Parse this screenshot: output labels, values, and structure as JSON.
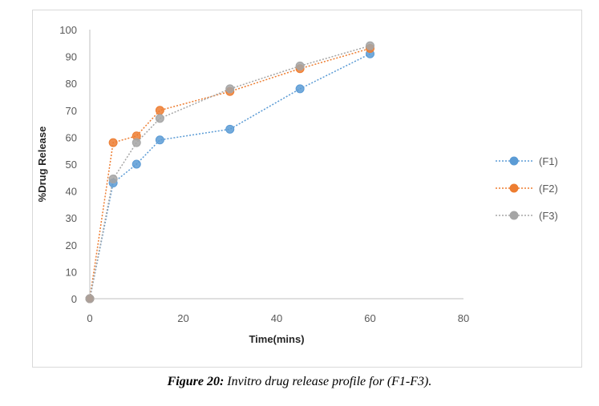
{
  "chart_data": {
    "type": "line",
    "title": "",
    "xlabel": "Time(mins)",
    "ylabel": "%Drug Release",
    "xlim": [
      0,
      80
    ],
    "ylim": [
      0,
      100
    ],
    "xticks": [
      0,
      20,
      40,
      60,
      80
    ],
    "yticks": [
      0,
      10,
      20,
      30,
      40,
      50,
      60,
      70,
      80,
      90,
      100
    ],
    "grid": false,
    "legend_position": "right",
    "x": [
      0,
      5,
      10,
      15,
      30,
      45,
      60
    ],
    "series": [
      {
        "name": "(F1)",
        "color": "#5b9bd5",
        "values": [
          0,
          43,
          50,
          59,
          63,
          78,
          91
        ]
      },
      {
        "name": "(F2)",
        "color": "#ed7d31",
        "values": [
          0,
          58,
          60.5,
          70,
          77,
          85.5,
          93
        ]
      },
      {
        "name": "(F3)",
        "color": "#a5a5a5",
        "values": [
          0,
          44.5,
          58,
          67,
          78,
          86.5,
          94
        ]
      }
    ]
  },
  "caption": {
    "label": "Figure 20:",
    "text": " Invitro drug release profile for (F1-F3)."
  }
}
